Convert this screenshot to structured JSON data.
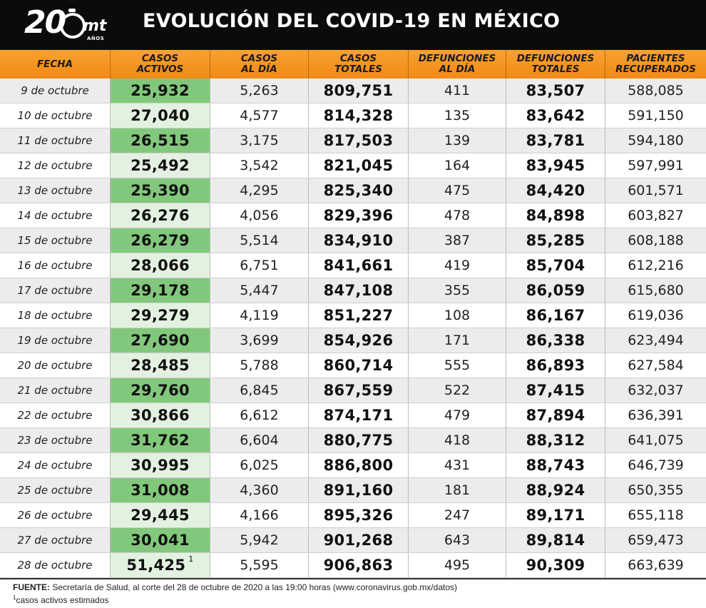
{
  "header": {
    "logo_big": "20",
    "logo_mt": "mt",
    "logo_anos": "AÑOS",
    "title": "EVOLUCIÓN DEL COVID-19 EN MÉXICO"
  },
  "columns": [
    "FECHA",
    "CASOS\nACTIVOS",
    "CASOS\nAL DÍA",
    "CASOS\nTOTALES",
    "DEFUNCIONES\nAL DÍA",
    "DEFUNCIONES\nTOTALES",
    "PACIENTES\nRECUPERADOS"
  ],
  "rows": [
    [
      "9 de octubre",
      "25,932",
      "5,263",
      "809,751",
      "411",
      "83,507",
      "588,085"
    ],
    [
      "10 de octubre",
      "27,040",
      "4,577",
      "814,328",
      "135",
      "83,642",
      "591,150"
    ],
    [
      "11 de octubre",
      "26,515",
      "3,175",
      "817,503",
      "139",
      "83,781",
      "594,180"
    ],
    [
      "12 de octubre",
      "25,492",
      "3,542",
      "821,045",
      "164",
      "83,945",
      "597,991"
    ],
    [
      "13 de octubre",
      "25,390",
      "4,295",
      "825,340",
      "475",
      "84,420",
      "601,571"
    ],
    [
      "14 de octubre",
      "26,276",
      "4,056",
      "829,396",
      "478",
      "84,898",
      "603,827"
    ],
    [
      "15 de octubre",
      "26,279",
      "5,514",
      "834,910",
      "387",
      "85,285",
      "608,188"
    ],
    [
      "16 de octubre",
      "28,066",
      "6,751",
      "841,661",
      "419",
      "85,704",
      "612,216"
    ],
    [
      "17 de octubre",
      "29,178",
      "5,447",
      "847,108",
      "355",
      "86,059",
      "615,680"
    ],
    [
      "18 de octubre",
      "29,279",
      "4,119",
      "851,227",
      "108",
      "86,167",
      "619,036"
    ],
    [
      "19 de octubre",
      "27,690",
      "3,699",
      "854,926",
      "171",
      "86,338",
      "623,494"
    ],
    [
      "20 de octubre",
      "28,485",
      "5,788",
      "860,714",
      "555",
      "86,893",
      "627,584"
    ],
    [
      "21 de octubre",
      "29,760",
      "6,845",
      "867,559",
      "522",
      "87,415",
      "632,037"
    ],
    [
      "22 de octubre",
      "30,866",
      "6,612",
      "874,171",
      "479",
      "87,894",
      "636,391"
    ],
    [
      "23 de octubre",
      "31,762",
      "6,604",
      "880,775",
      "418",
      "88,312",
      "641,075"
    ],
    [
      "24 de octubre",
      "30,995",
      "6,025",
      "886,800",
      "431",
      "88,743",
      "646,739"
    ],
    [
      "25 de octubre",
      "31,008",
      "4,360",
      "891,160",
      "181",
      "88,924",
      "650,355"
    ],
    [
      "26 de octubre",
      "29,445",
      "4,166",
      "895,326",
      "247",
      "89,171",
      "655,118"
    ],
    [
      "27 de octubre",
      "30,041",
      "5,942",
      "901,268",
      "643",
      "89,814",
      "659,473"
    ],
    [
      "28 de octubre",
      "51,425",
      "5,595",
      "906,863",
      "495",
      "90,309",
      "663,639"
    ]
  ],
  "last_row_marker": "1",
  "footer": {
    "source_label": "FUENTE:",
    "source_text": " Secretaría de Salud, al corte del 28 de octubre de 2020 a las 19:00 horas (www.coronavirus.gob.mx/datos)",
    "note_marker": "1",
    "note_text": "casos activos estimados"
  },
  "colors": {
    "header_bg": "#0b0b0b",
    "header_row": "#f5961f",
    "active_green": "#82c87c",
    "active_light": "#e3f1e0",
    "row_alt": "#ececec"
  }
}
